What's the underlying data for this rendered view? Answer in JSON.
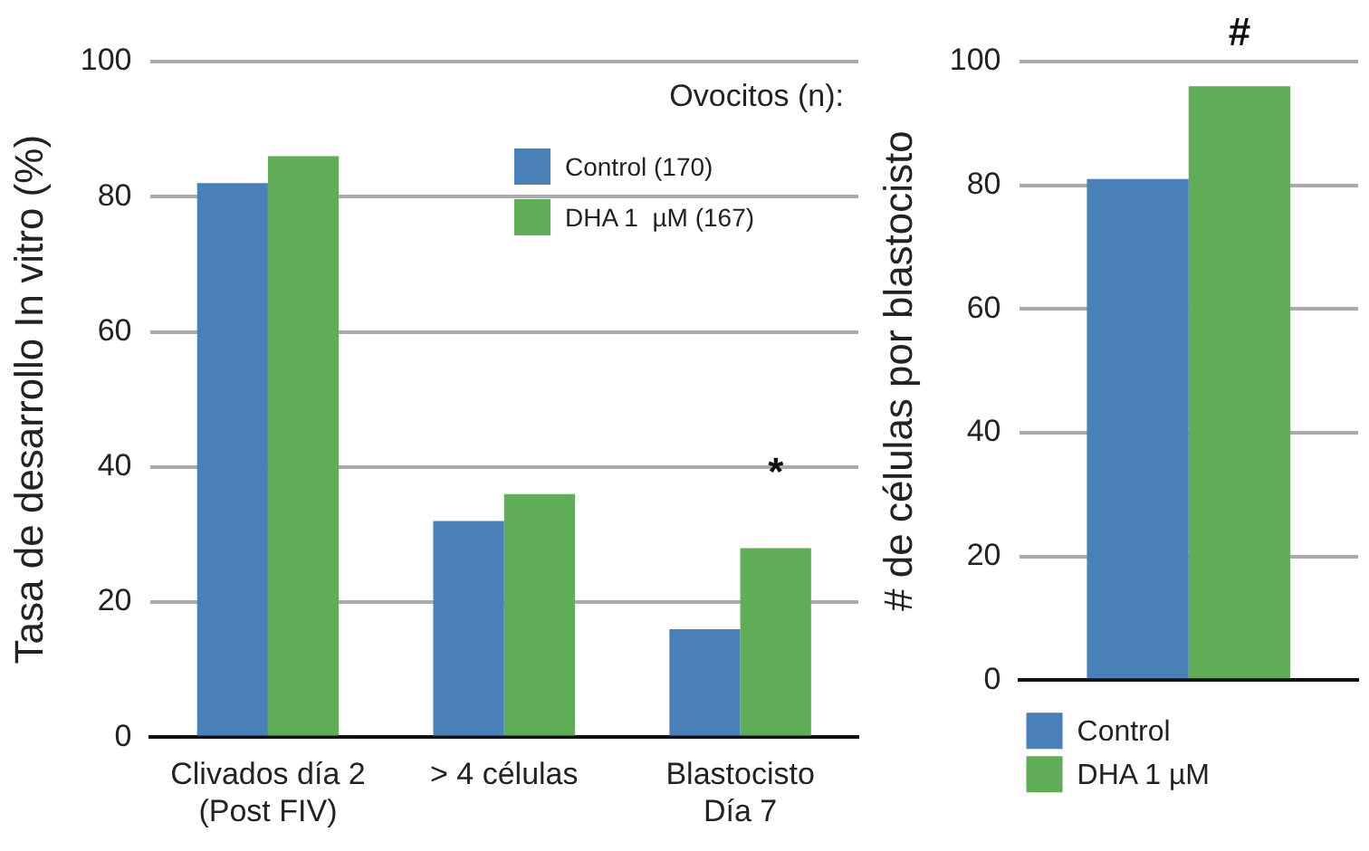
{
  "chart_data": [
    {
      "type": "bar",
      "ylabel": "Tasa de desarrollo In vitro (%)",
      "legend_title": "Ovocitos (n):",
      "categories": [
        "Clivados día 2\n(Post FIV)",
        "> 4 células",
        "Blastocisto\nDía 7"
      ],
      "series": [
        {
          "name": "Control (170)",
          "color": "#4a80b8",
          "values": [
            82,
            32,
            16
          ]
        },
        {
          "name": "DHA 1  µM (167)",
          "color": "#5fad56",
          "values": [
            86,
            36,
            28
          ]
        }
      ],
      "ylim": [
        0,
        100
      ],
      "yticks": [
        0,
        20,
        40,
        60,
        80,
        100
      ],
      "grid": "y",
      "legend": "top right",
      "annotations": [
        "*"
      ]
    },
    {
      "type": "bar",
      "ylabel": "# de células por blastocisto",
      "categories": [
        null
      ],
      "series": [
        {
          "name": "Control",
          "color": "#4a80b8",
          "values": [
            81
          ]
        },
        {
          "name": "DHA 1 µM",
          "color": "#5fad56",
          "values": [
            96
          ]
        }
      ],
      "ylim": [
        0,
        100
      ],
      "yticks": [
        0,
        20,
        40,
        60,
        80,
        100
      ],
      "grid": "y",
      "legend": "bottom",
      "annotations": [
        "#"
      ]
    }
  ]
}
